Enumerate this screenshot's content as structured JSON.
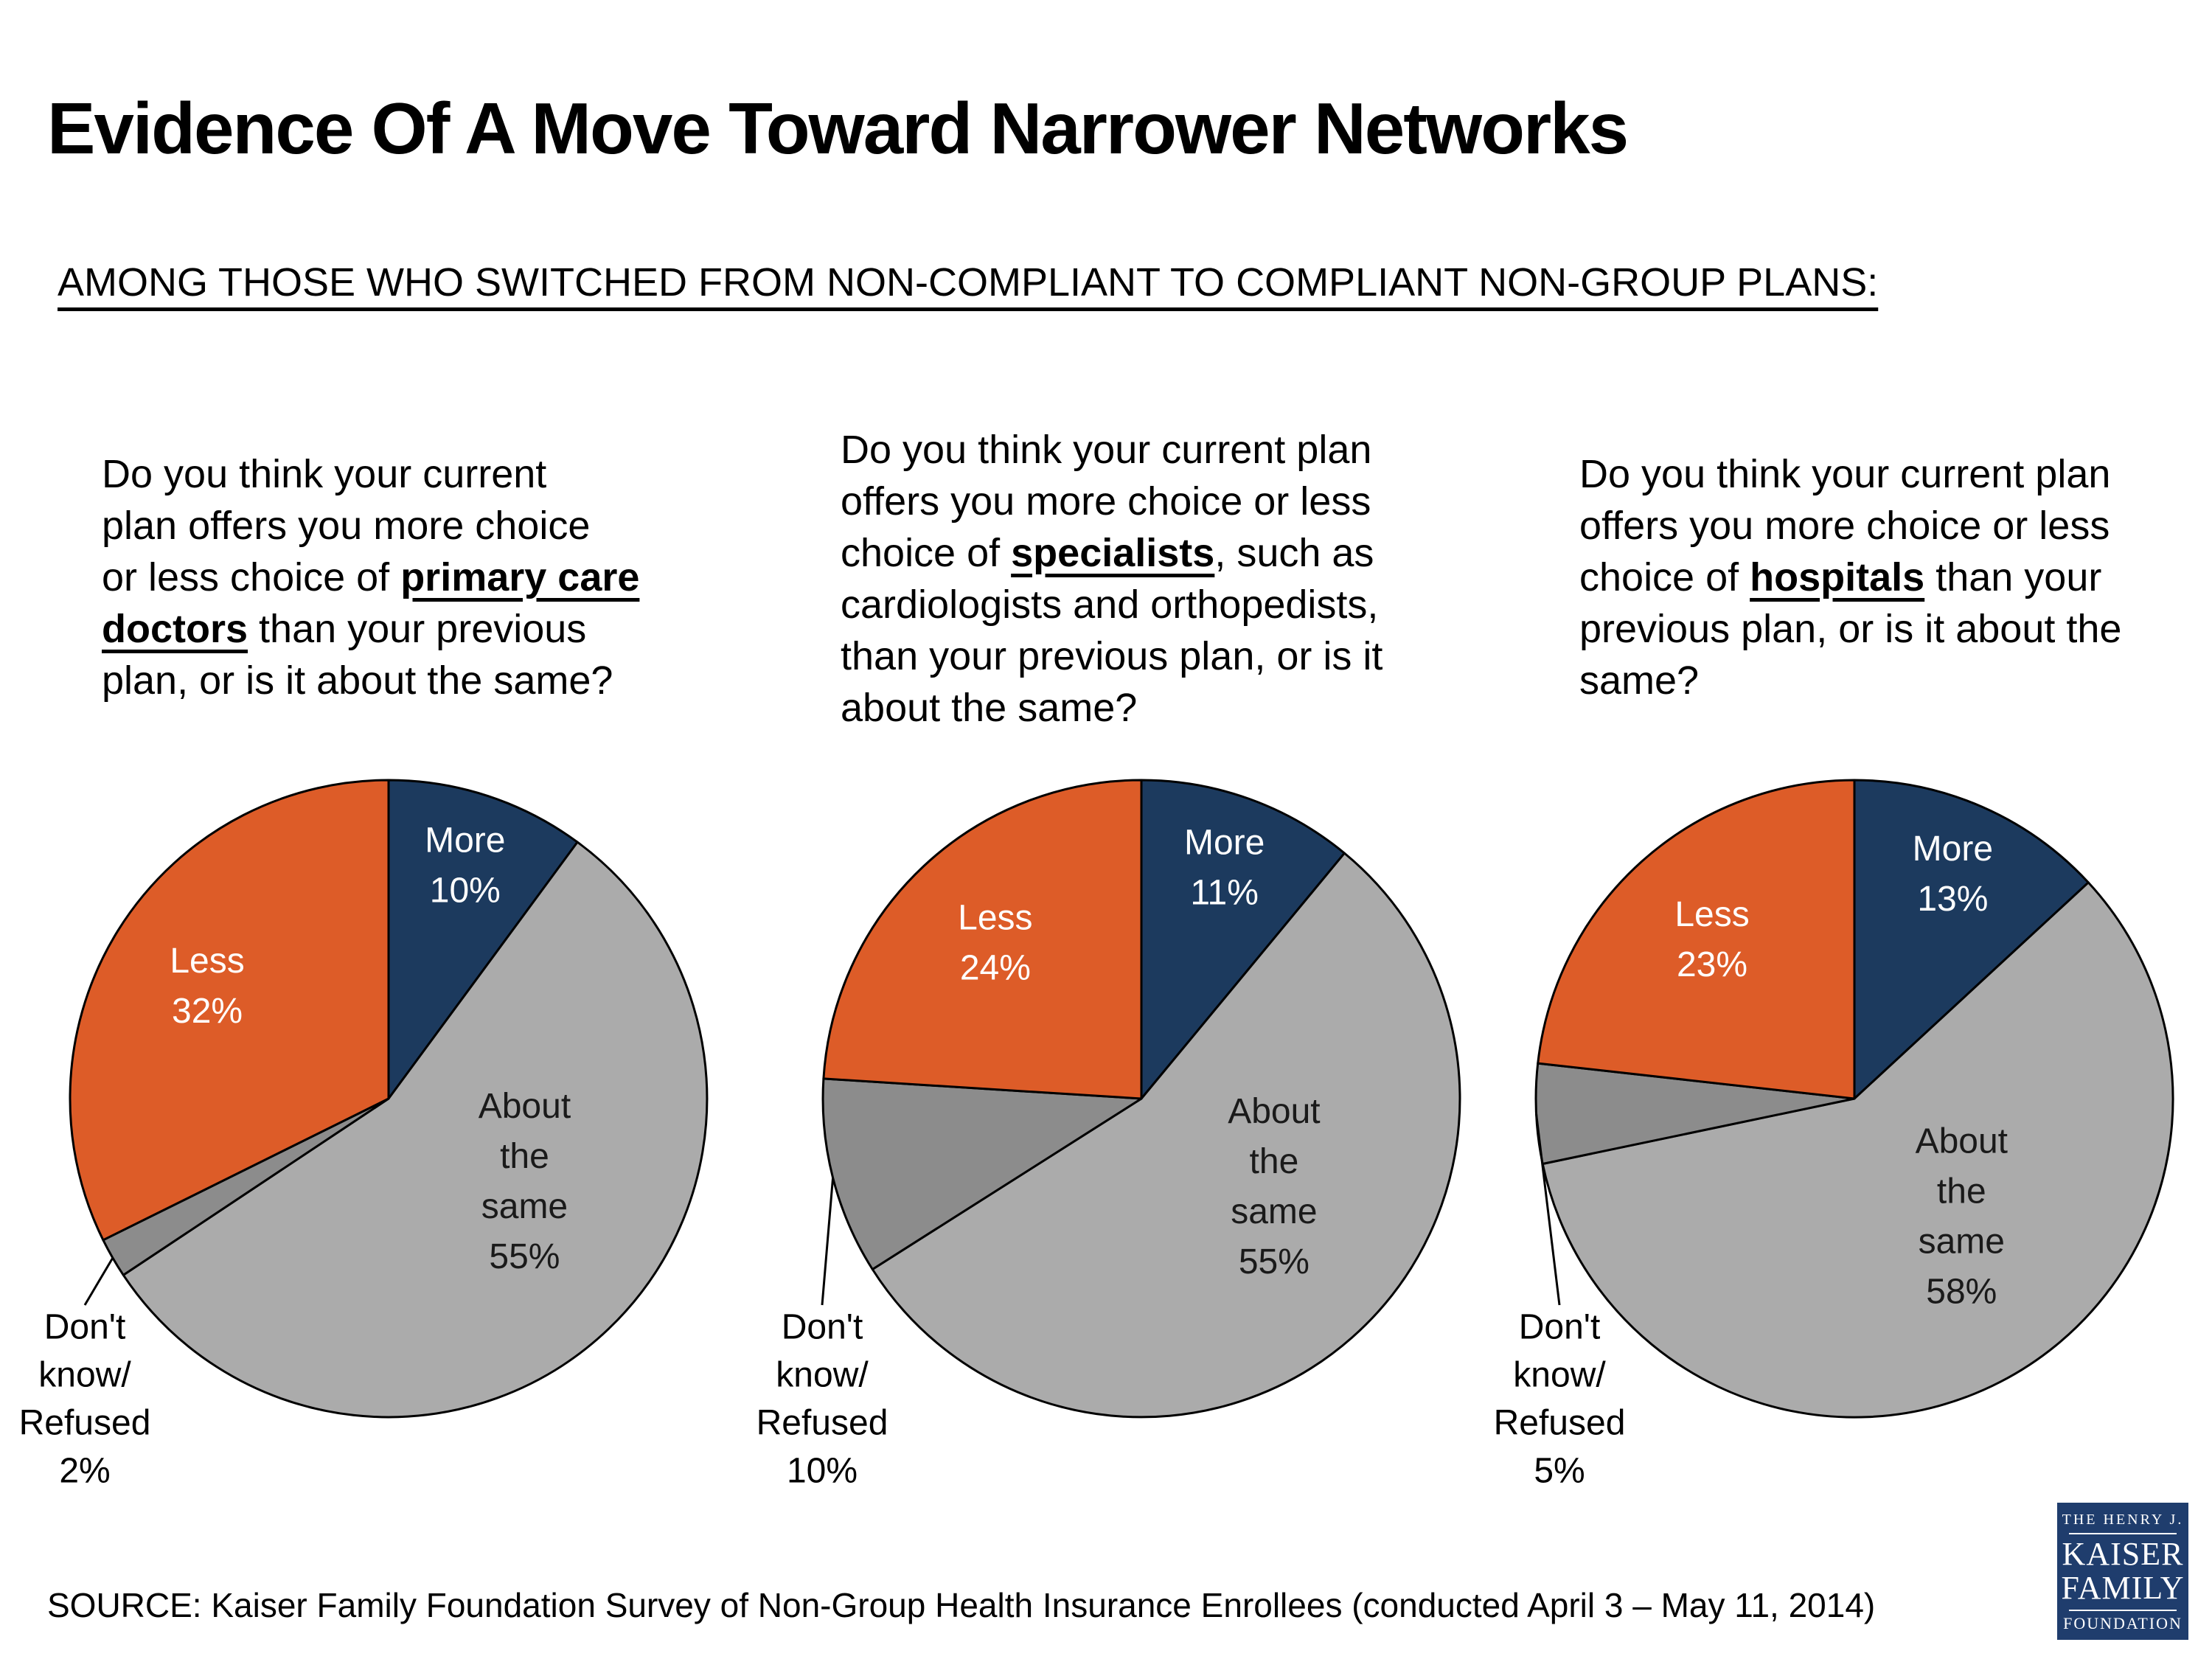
{
  "title": "Evidence Of A Move Toward Narrower Networks",
  "subtitle": "AMONG THOSE WHO SWITCHED FROM NON-COMPLIANT TO COMPLIANT NON-GROUP PLANS:",
  "source": "SOURCE: Kaiser Family Foundation Survey of Non-Group Health Insurance Enrollees (conducted April 3 – May 11, 2014)",
  "logo": {
    "line1": "THE HENRY J.",
    "line2": "KAISER",
    "line3": "FAMILY",
    "line4": "FOUNDATION",
    "bg_color": "#1f3d6d"
  },
  "colors": {
    "more": "#1c3a5e",
    "less": "#dd5c28",
    "about_same": "#ababab",
    "dont_know": "#8c8c8c",
    "outline": "#000000"
  },
  "questions": [
    {
      "lines": [
        [
          {
            "t": "Do you think your current"
          }
        ],
        [
          {
            "t": "plan offers you more choice"
          }
        ],
        [
          {
            "t": "or less choice of "
          },
          {
            "t": "primary care",
            "bu": true
          }
        ],
        [
          {
            "t": "doctors",
            "bu": true
          },
          {
            "t": " than your previous"
          }
        ],
        [
          {
            "t": "plan, or is it about the same?"
          }
        ]
      ]
    },
    {
      "lines": [
        [
          {
            "t": "Do you think your current plan"
          }
        ],
        [
          {
            "t": "offers you more choice or less"
          }
        ],
        [
          {
            "t": "choice of "
          },
          {
            "t": "specialists",
            "bu": true
          },
          {
            "t": ", such as"
          }
        ],
        [
          {
            "t": "cardiologists and orthopedists,"
          }
        ],
        [
          {
            "t": "than your previous plan, or is it"
          }
        ],
        [
          {
            "t": "about the same?"
          }
        ]
      ]
    },
    {
      "lines": [
        [
          {
            "t": "Do you think your current plan"
          }
        ],
        [
          {
            "t": "offers you more choice or less"
          }
        ],
        [
          {
            "t": "choice of "
          },
          {
            "t": "hospitals",
            "bu": true
          },
          {
            "t": " than your"
          }
        ],
        [
          {
            "t": "previous plan, or is it about the"
          }
        ],
        [
          {
            "t": "same?"
          }
        ]
      ]
    }
  ],
  "chart_data": [
    {
      "type": "pie",
      "topic": "primary care doctors",
      "start_angle": "top",
      "direction": "clockwise",
      "slices": [
        {
          "label": "More",
          "value": 10,
          "pct_label": "10%",
          "color": "#1c3a5e",
          "label_color": "#ffffff",
          "label_lines": [
            "More",
            "10%"
          ],
          "placement": "inside"
        },
        {
          "label": "About the same",
          "value": 55,
          "pct_label": "55%",
          "color": "#ababab",
          "label_color": "#1a1a1a",
          "label_lines": [
            "About",
            "the",
            "same",
            "55%"
          ],
          "placement": "inside"
        },
        {
          "label": "Don't know/Refused",
          "value": 2,
          "pct_label": "2%",
          "color": "#8c8c8c",
          "label_color": "#000000",
          "label_lines": [
            "Don't",
            "know/",
            "Refused",
            "2%"
          ],
          "placement": "outside-left"
        },
        {
          "label": "Less",
          "value": 32,
          "pct_label": "32%",
          "color": "#dd5c28",
          "label_color": "#ffffff",
          "label_lines": [
            "Less",
            "32%"
          ],
          "placement": "inside"
        }
      ]
    },
    {
      "type": "pie",
      "topic": "specialists",
      "start_angle": "top",
      "direction": "clockwise",
      "slices": [
        {
          "label": "More",
          "value": 11,
          "pct_label": "11%",
          "color": "#1c3a5e",
          "label_color": "#ffffff",
          "label_lines": [
            "More",
            "11%"
          ],
          "placement": "inside"
        },
        {
          "label": "About the same",
          "value": 55,
          "pct_label": "55%",
          "color": "#ababab",
          "label_color": "#1a1a1a",
          "label_lines": [
            "About",
            "the",
            "same",
            "55%"
          ],
          "placement": "inside"
        },
        {
          "label": "Don't know/Refused",
          "value": 10,
          "pct_label": "10%",
          "color": "#8c8c8c",
          "label_color": "#000000",
          "label_lines": [
            "Don't",
            "know/",
            "Refused",
            "10%"
          ],
          "placement": "outside-left"
        },
        {
          "label": "Less",
          "value": 24,
          "pct_label": "24%",
          "color": "#dd5c28",
          "label_color": "#ffffff",
          "label_lines": [
            "Less",
            "24%"
          ],
          "placement": "inside"
        }
      ]
    },
    {
      "type": "pie",
      "topic": "hospitals",
      "start_angle": "top",
      "direction": "clockwise",
      "slices": [
        {
          "label": "More",
          "value": 13,
          "pct_label": "13%",
          "color": "#1c3a5e",
          "label_color": "#ffffff",
          "label_lines": [
            "More",
            "13%"
          ],
          "placement": "inside"
        },
        {
          "label": "About the same",
          "value": 58,
          "pct_label": "58%",
          "color": "#ababab",
          "label_color": "#1a1a1a",
          "label_lines": [
            "About",
            "the",
            "same",
            "58%"
          ],
          "placement": "inside"
        },
        {
          "label": "Don't know/Refused",
          "value": 5,
          "pct_label": "5%",
          "color": "#8c8c8c",
          "label_color": "#000000",
          "label_lines": [
            "Don't",
            "know/",
            "Refused",
            "5%"
          ],
          "placement": "outside-left"
        },
        {
          "label": "Less",
          "value": 23,
          "pct_label": "23%",
          "color": "#dd5c28",
          "label_color": "#ffffff",
          "label_lines": [
            "Less",
            "23%"
          ],
          "placement": "inside"
        }
      ]
    }
  ]
}
